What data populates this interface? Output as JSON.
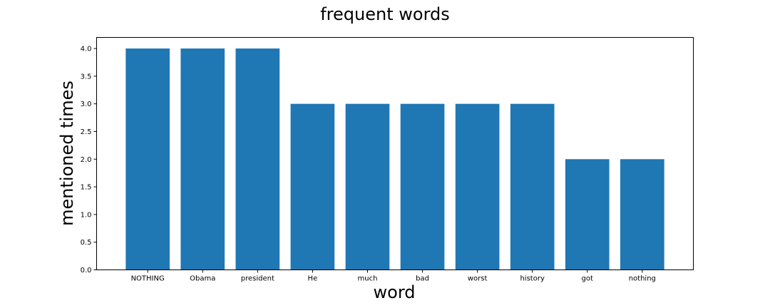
{
  "chart_data": {
    "type": "bar",
    "title": "frequent words",
    "xlabel": "word",
    "ylabel": "mentioned times",
    "categories": [
      "NOTHING",
      "Obama",
      "president",
      "He",
      "much",
      "bad",
      "worst",
      "history",
      "got",
      "nothing"
    ],
    "values": [
      4,
      4,
      4,
      3,
      3,
      3,
      3,
      3,
      2,
      2
    ],
    "ylim": [
      0,
      4.2
    ],
    "yticks": [
      "0.0",
      "0.5",
      "1.0",
      "1.5",
      "2.0",
      "2.5",
      "3.0",
      "3.5",
      "4.0"
    ],
    "bar_color": "#1f77b4",
    "grid": false
  }
}
